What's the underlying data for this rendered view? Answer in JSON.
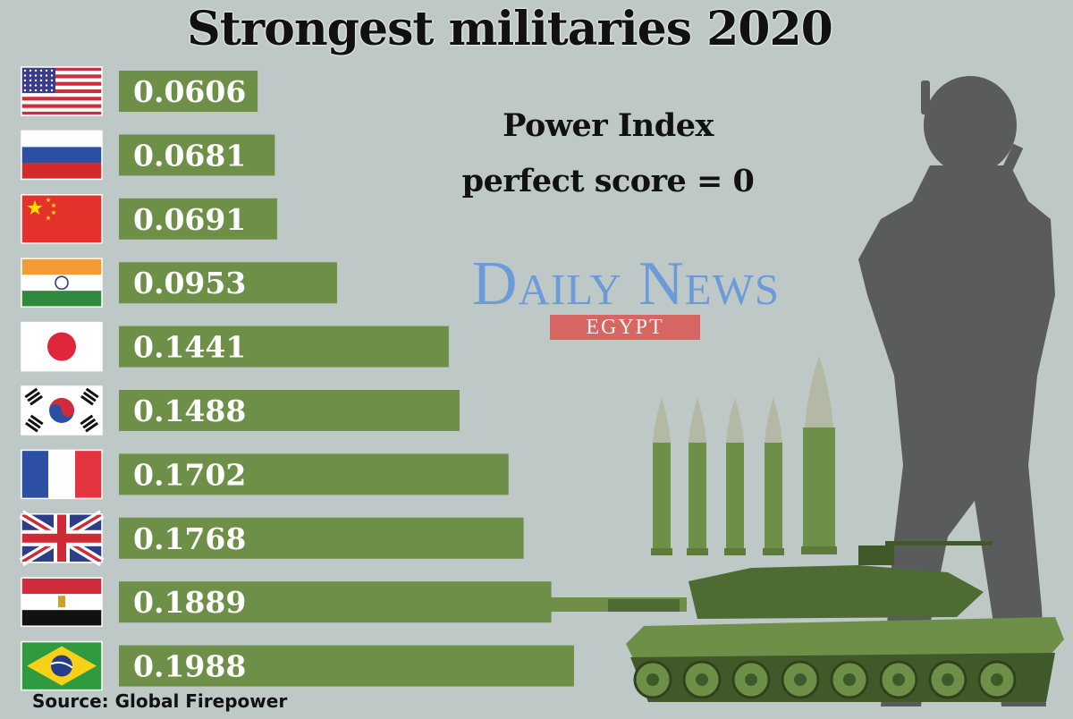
{
  "title": "Strongest militaries 2020",
  "subtitle_line1": "Power Index",
  "subtitle_line2": "perfect score = 0",
  "brand": "Daily News",
  "brand_sub": "EGYPT",
  "source": "Source: Global Firepower",
  "colors": {
    "bar": "#6e8f47",
    "background": "#bec9c7",
    "brand": "#6c9bd9",
    "brand_sub_bg": "#d76663",
    "silhouette": "#5a5b5c",
    "ammo": "#6e8f47",
    "tank": "#4e6b33"
  },
  "chart_data": {
    "type": "bar",
    "orientation": "horizontal",
    "title": "Strongest militaries 2020",
    "subtitle": "Power Index perfect score = 0",
    "categories": [
      "United States",
      "Russia",
      "China",
      "India",
      "Japan",
      "South Korea",
      "France",
      "United Kingdom",
      "Egypt",
      "Brazil"
    ],
    "values": [
      0.0606,
      0.0681,
      0.0691,
      0.0953,
      0.1441,
      0.1488,
      0.1702,
      0.1768,
      0.1889,
      0.1988
    ],
    "labels": [
      "0.0606",
      "0.0681",
      "0.0691",
      "0.0953",
      "0.1441",
      "0.1488",
      "0.1702",
      "0.1768",
      "0.1889",
      "0.1988"
    ],
    "flags": [
      "flag-usa",
      "flag-russia",
      "flag-china",
      "flag-india",
      "flag-japan",
      "flag-south-korea",
      "flag-france",
      "flag-uk",
      "flag-egypt",
      "flag-brazil"
    ],
    "xlabel": "",
    "ylabel": "",
    "grid": false,
    "source": "Source: Global Firepower"
  },
  "illustrations": [
    "soldier-silhouette",
    "ammunition-rounds",
    "tank"
  ]
}
